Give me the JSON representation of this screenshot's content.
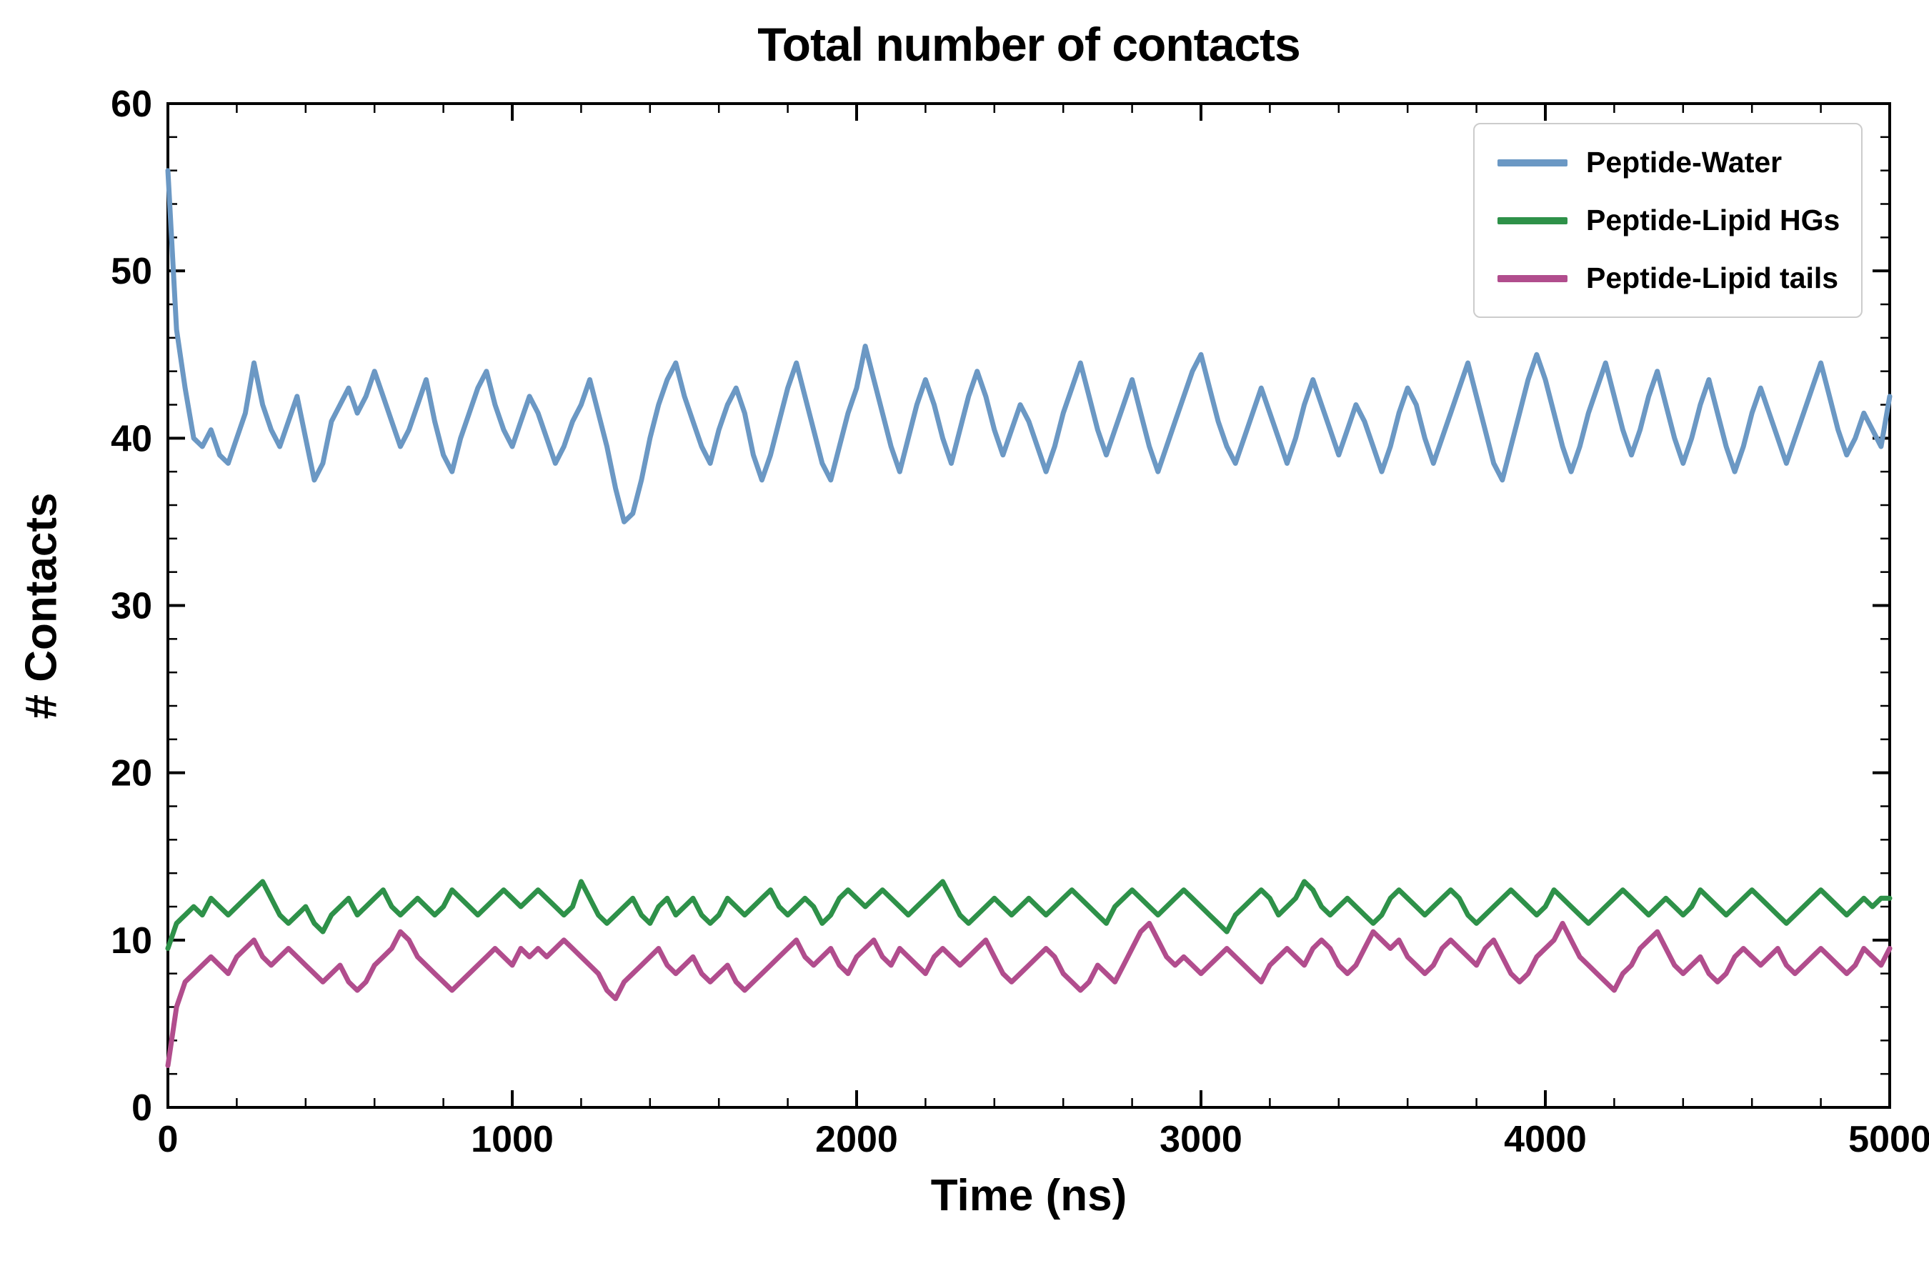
{
  "chart": {
    "title": "Total number of contacts",
    "xlabel": "Time (ns)",
    "ylabel": "# Contacts"
  },
  "legend": {
    "border_color": "#cccccc",
    "items": [
      {
        "label": "Peptide-Water",
        "color": "#6b98c4"
      },
      {
        "label": "Peptide-Lipid HGs",
        "color": "#2e9149"
      },
      {
        "label": "Peptide-Lipid tails",
        "color": "#b14d8d"
      }
    ]
  },
  "chart_data": {
    "type": "line",
    "title": "Total number of contacts",
    "xlabel": "Time (ns)",
    "ylabel": "# Contacts",
    "xlim": [
      0,
      5000
    ],
    "ylim": [
      0,
      60
    ],
    "xticks": [
      0,
      1000,
      2000,
      3000,
      4000,
      5000
    ],
    "yticks": [
      0,
      10,
      20,
      30,
      40,
      50,
      60
    ],
    "x_minor_step": 200,
    "y_minor_step": 2,
    "grid": false,
    "legend_position": "upper right",
    "x_start": 0,
    "x_step": 25,
    "series": [
      {
        "name": "Peptide-Water",
        "color": "#6b98c4",
        "values": [
          56.0,
          46.5,
          43.0,
          40.0,
          39.5,
          40.5,
          39.0,
          38.5,
          40.0,
          41.5,
          44.5,
          42.0,
          40.5,
          39.5,
          41.0,
          42.5,
          40.0,
          37.5,
          38.5,
          41.0,
          42.0,
          43.0,
          41.5,
          42.5,
          44.0,
          42.5,
          41.0,
          39.5,
          40.5,
          42.0,
          43.5,
          41.0,
          39.0,
          38.0,
          40.0,
          41.5,
          43.0,
          44.0,
          42.0,
          40.5,
          39.5,
          41.0,
          42.5,
          41.5,
          40.0,
          38.5,
          39.5,
          41.0,
          42.0,
          43.5,
          41.5,
          39.5,
          37.0,
          35.0,
          35.5,
          37.5,
          40.0,
          42.0,
          43.5,
          44.5,
          42.5,
          41.0,
          39.5,
          38.5,
          40.5,
          42.0,
          43.0,
          41.5,
          39.0,
          37.5,
          39.0,
          41.0,
          43.0,
          44.5,
          42.5,
          40.5,
          38.5,
          37.5,
          39.5,
          41.5,
          43.0,
          45.5,
          43.5,
          41.5,
          39.5,
          38.0,
          40.0,
          42.0,
          43.5,
          42.0,
          40.0,
          38.5,
          40.5,
          42.5,
          44.0,
          42.5,
          40.5,
          39.0,
          40.5,
          42.0,
          41.0,
          39.5,
          38.0,
          39.5,
          41.5,
          43.0,
          44.5,
          42.5,
          40.5,
          39.0,
          40.5,
          42.0,
          43.5,
          41.5,
          39.5,
          38.0,
          39.5,
          41.0,
          42.5,
          44.0,
          45.0,
          43.0,
          41.0,
          39.5,
          38.5,
          40.0,
          41.5,
          43.0,
          41.5,
          40.0,
          38.5,
          40.0,
          42.0,
          43.5,
          42.0,
          40.5,
          39.0,
          40.5,
          42.0,
          41.0,
          39.5,
          38.0,
          39.5,
          41.5,
          43.0,
          42.0,
          40.0,
          38.5,
          40.0,
          41.5,
          43.0,
          44.5,
          42.5,
          40.5,
          38.5,
          37.5,
          39.5,
          41.5,
          43.5,
          45.0,
          43.5,
          41.5,
          39.5,
          38.0,
          39.5,
          41.5,
          43.0,
          44.5,
          42.5,
          40.5,
          39.0,
          40.5,
          42.5,
          44.0,
          42.0,
          40.0,
          38.5,
          40.0,
          42.0,
          43.5,
          41.5,
          39.5,
          38.0,
          39.5,
          41.5,
          43.0,
          41.5,
          40.0,
          38.5,
          40.0,
          41.5,
          43.0,
          44.5,
          42.5,
          40.5,
          39.0,
          40.0,
          41.5,
          40.5,
          39.5,
          42.5
        ]
      },
      {
        "name": "Peptide-Lipid HGs",
        "color": "#2e9149",
        "values": [
          9.5,
          11.0,
          11.5,
          12.0,
          11.5,
          12.5,
          12.0,
          11.5,
          12.0,
          12.5,
          13.0,
          13.5,
          12.5,
          11.5,
          11.0,
          11.5,
          12.0,
          11.0,
          10.5,
          11.5,
          12.0,
          12.5,
          11.5,
          12.0,
          12.5,
          13.0,
          12.0,
          11.5,
          12.0,
          12.5,
          12.0,
          11.5,
          12.0,
          13.0,
          12.5,
          12.0,
          11.5,
          12.0,
          12.5,
          13.0,
          12.5,
          12.0,
          12.5,
          13.0,
          12.5,
          12.0,
          11.5,
          12.0,
          13.5,
          12.5,
          11.5,
          11.0,
          11.5,
          12.0,
          12.5,
          11.5,
          11.0,
          12.0,
          12.5,
          11.5,
          12.0,
          12.5,
          11.5,
          11.0,
          11.5,
          12.5,
          12.0,
          11.5,
          12.0,
          12.5,
          13.0,
          12.0,
          11.5,
          12.0,
          12.5,
          12.0,
          11.0,
          11.5,
          12.5,
          13.0,
          12.5,
          12.0,
          12.5,
          13.0,
          12.5,
          12.0,
          11.5,
          12.0,
          12.5,
          13.0,
          13.5,
          12.5,
          11.5,
          11.0,
          11.5,
          12.0,
          12.5,
          12.0,
          11.5,
          12.0,
          12.5,
          12.0,
          11.5,
          12.0,
          12.5,
          13.0,
          12.5,
          12.0,
          11.5,
          11.0,
          12.0,
          12.5,
          13.0,
          12.5,
          12.0,
          11.5,
          12.0,
          12.5,
          13.0,
          12.5,
          12.0,
          11.5,
          11.0,
          10.5,
          11.5,
          12.0,
          12.5,
          13.0,
          12.5,
          11.5,
          12.0,
          12.5,
          13.5,
          13.0,
          12.0,
          11.5,
          12.0,
          12.5,
          12.0,
          11.5,
          11.0,
          11.5,
          12.5,
          13.0,
          12.5,
          12.0,
          11.5,
          12.0,
          12.5,
          13.0,
          12.5,
          11.5,
          11.0,
          11.5,
          12.0,
          12.5,
          13.0,
          12.5,
          12.0,
          11.5,
          12.0,
          13.0,
          12.5,
          12.0,
          11.5,
          11.0,
          11.5,
          12.0,
          12.5,
          13.0,
          12.5,
          12.0,
          11.5,
          12.0,
          12.5,
          12.0,
          11.5,
          12.0,
          13.0,
          12.5,
          12.0,
          11.5,
          12.0,
          12.5,
          13.0,
          12.5,
          12.0,
          11.5,
          11.0,
          11.5,
          12.0,
          12.5,
          13.0,
          12.5,
          12.0,
          11.5,
          12.0,
          12.5,
          12.0,
          12.5,
          12.5
        ]
      },
      {
        "name": "Peptide-Lipid tails",
        "color": "#b14d8d",
        "values": [
          2.5,
          6.0,
          7.5,
          8.0,
          8.5,
          9.0,
          8.5,
          8.0,
          9.0,
          9.5,
          10.0,
          9.0,
          8.5,
          9.0,
          9.5,
          9.0,
          8.5,
          8.0,
          7.5,
          8.0,
          8.5,
          7.5,
          7.0,
          7.5,
          8.5,
          9.0,
          9.5,
          10.5,
          10.0,
          9.0,
          8.5,
          8.0,
          7.5,
          7.0,
          7.5,
          8.0,
          8.5,
          9.0,
          9.5,
          9.0,
          8.5,
          9.5,
          9.0,
          9.5,
          9.0,
          9.5,
          10.0,
          9.5,
          9.0,
          8.5,
          8.0,
          7.0,
          6.5,
          7.5,
          8.0,
          8.5,
          9.0,
          9.5,
          8.5,
          8.0,
          8.5,
          9.0,
          8.0,
          7.5,
          8.0,
          8.5,
          7.5,
          7.0,
          7.5,
          8.0,
          8.5,
          9.0,
          9.5,
          10.0,
          9.0,
          8.5,
          9.0,
          9.5,
          8.5,
          8.0,
          9.0,
          9.5,
          10.0,
          9.0,
          8.5,
          9.5,
          9.0,
          8.5,
          8.0,
          9.0,
          9.5,
          9.0,
          8.5,
          9.0,
          9.5,
          10.0,
          9.0,
          8.0,
          7.5,
          8.0,
          8.5,
          9.0,
          9.5,
          9.0,
          8.0,
          7.5,
          7.0,
          7.5,
          8.5,
          8.0,
          7.5,
          8.5,
          9.5,
          10.5,
          11.0,
          10.0,
          9.0,
          8.5,
          9.0,
          8.5,
          8.0,
          8.5,
          9.0,
          9.5,
          9.0,
          8.5,
          8.0,
          7.5,
          8.5,
          9.0,
          9.5,
          9.0,
          8.5,
          9.5,
          10.0,
          9.5,
          8.5,
          8.0,
          8.5,
          9.5,
          10.5,
          10.0,
          9.5,
          10.0,
          9.0,
          8.5,
          8.0,
          8.5,
          9.5,
          10.0,
          9.5,
          9.0,
          8.5,
          9.5,
          10.0,
          9.0,
          8.0,
          7.5,
          8.0,
          9.0,
          9.5,
          10.0,
          11.0,
          10.0,
          9.0,
          8.5,
          8.0,
          7.5,
          7.0,
          8.0,
          8.5,
          9.5,
          10.0,
          10.5,
          9.5,
          8.5,
          8.0,
          8.5,
          9.0,
          8.0,
          7.5,
          8.0,
          9.0,
          9.5,
          9.0,
          8.5,
          9.0,
          9.5,
          8.5,
          8.0,
          8.5,
          9.0,
          9.5,
          9.0,
          8.5,
          8.0,
          8.5,
          9.5,
          9.0,
          8.5,
          9.5
        ]
      }
    ]
  }
}
